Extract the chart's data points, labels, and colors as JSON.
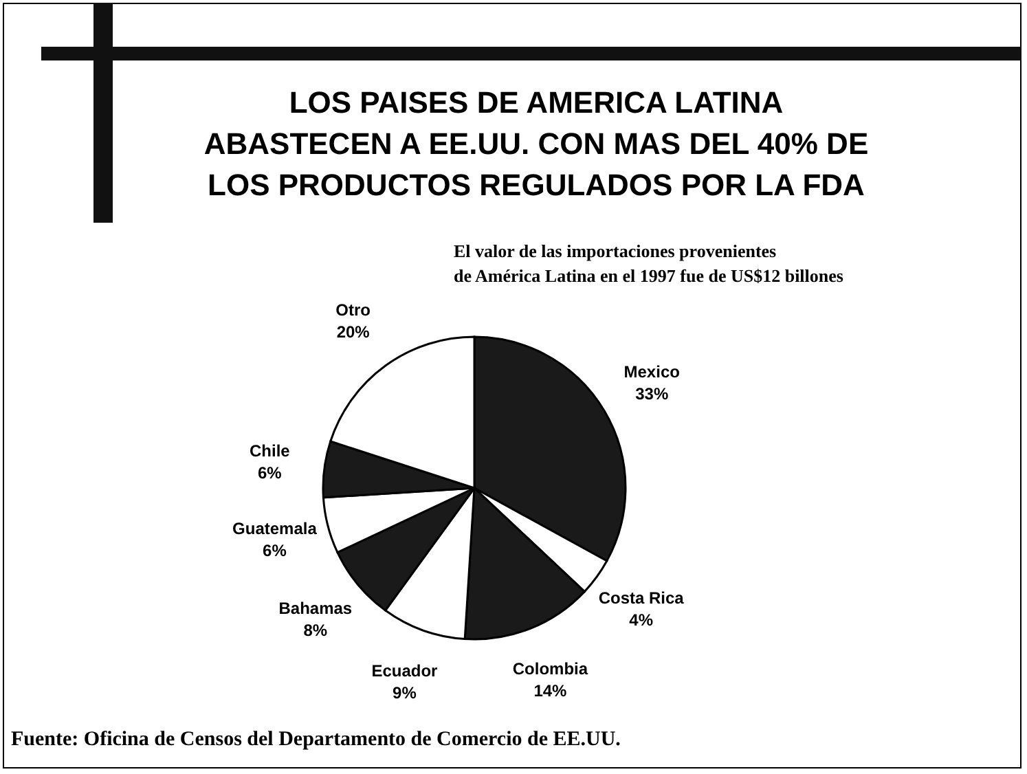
{
  "chart_data": {
    "type": "pie",
    "title": "LOS PAISES DE AMERICA LATINA\nABASTECEN A EE.UU. CON MAS DEL 40% DE\nLOS PRODUCTOS REGULADOS POR LA FDA",
    "subtitle": "El valor de las importaciones provenientes\nde América Latina en el 1997 fue de US$12 billones",
    "categories": [
      "Mexico",
      "Costa Rica",
      "Colombia",
      "Ecuador",
      "Bahamas",
      "Guatemala",
      "Chile",
      "Otro"
    ],
    "values": [
      33,
      4,
      14,
      9,
      8,
      6,
      6,
      20
    ],
    "value_labels": [
      "33%",
      "4%",
      "14%",
      "9%",
      "8%",
      "6%",
      "6%",
      "20%"
    ],
    "colors": [
      "#1a1a1a",
      "#ffffff",
      "#1a1a1a",
      "#ffffff",
      "#1a1a1a",
      "#ffffff",
      "#1a1a1a",
      "#ffffff"
    ],
    "annotations": [
      "Fuente: Oficina de Censos  del Departamento de Comercio de EE.UU."
    ]
  }
}
